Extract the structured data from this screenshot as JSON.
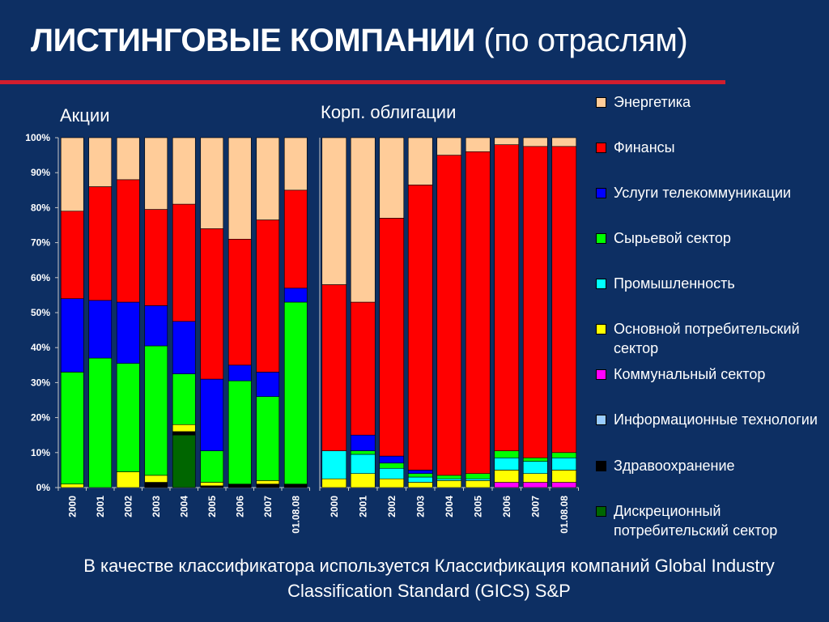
{
  "title": {
    "main": "ЛИСТИНГОВЫЕ КОМПАНИИ",
    "sub": "(по отраслям)"
  },
  "footnote": "В качестве классификатора используется Классификация компаний Global Industry Classification Standard (GICS) S&P",
  "colors": {
    "background": "#0d2f63",
    "rule": "#d21e2d",
    "axis": "#c8c8c8"
  },
  "legend": [
    {
      "key": "energy",
      "label": "Энергетика",
      "color": "#ffcc99"
    },
    {
      "key": "finance",
      "label": "Финансы",
      "color": "#ff0000"
    },
    {
      "key": "telecom",
      "label": "Услуги телекоммуникации",
      "color": "#0000ff"
    },
    {
      "key": "materials",
      "label": "Сырьевой сектор",
      "color": "#00ff00"
    },
    {
      "key": "industrials",
      "label": "Промышленность",
      "color": "#00ffff"
    },
    {
      "key": "staples",
      "label": "Основной потребительский сектор",
      "color": "#ffff00"
    },
    {
      "key": "utilities",
      "label": "Коммунальный сектор",
      "color": "#ff00ff"
    },
    {
      "key": "it",
      "label": "Информационные технологии",
      "color": "#99ccff"
    },
    {
      "key": "healthcare",
      "label": "Здравоохранение",
      "color": "#000000"
    },
    {
      "key": "discretionary",
      "label": "Дискреционный потребительский сектор",
      "color": "#006600"
    }
  ],
  "chart_data": [
    {
      "type": "bar",
      "stacked": true,
      "title": "Акции",
      "y_ticks": [
        "0%",
        "10%",
        "20%",
        "30%",
        "40%",
        "50%",
        "60%",
        "70%",
        "80%",
        "90%",
        "100%"
      ],
      "ylim": [
        0,
        100
      ],
      "categories": [
        "2000",
        "2001",
        "2002",
        "2003",
        "2004",
        "2005",
        "2006",
        "2007",
        "01.08.08"
      ],
      "series": [
        {
          "name": "Дискреционный потребительский сектор",
          "values": [
            0,
            0,
            0,
            0,
            15,
            0,
            0,
            0,
            0
          ]
        },
        {
          "name": "Здравоохранение",
          "values": [
            0,
            0,
            0,
            1.5,
            1,
            0.5,
            1,
            1,
            1
          ]
        },
        {
          "name": "Информационные технологии",
          "values": [
            0,
            0,
            0,
            0,
            0,
            0,
            0,
            0,
            0
          ]
        },
        {
          "name": "Коммунальный сектор",
          "values": [
            0,
            0,
            0,
            0,
            0,
            0,
            0,
            0,
            0
          ]
        },
        {
          "name": "Основной потребительский сектор",
          "values": [
            1,
            0,
            4.5,
            2,
            2,
            1,
            0,
            1,
            0
          ]
        },
        {
          "name": "Промышленность",
          "values": [
            0,
            0,
            0,
            0,
            0,
            0,
            0,
            0,
            0
          ]
        },
        {
          "name": "Сырьевой сектор",
          "values": [
            32,
            37,
            31,
            37,
            14.5,
            9,
            29.5,
            24,
            52
          ]
        },
        {
          "name": "Услуги телекоммуникации",
          "values": [
            21,
            16.5,
            17.5,
            11.5,
            15,
            20.5,
            4.5,
            7,
            4
          ]
        },
        {
          "name": "Финансы",
          "values": [
            25,
            32.5,
            35,
            27.5,
            33.5,
            43,
            36,
            43.5,
            28
          ]
        },
        {
          "name": "Энергетика",
          "values": [
            21,
            14,
            12,
            20.5,
            19,
            26,
            29,
            23.5,
            15
          ]
        }
      ]
    },
    {
      "type": "bar",
      "stacked": true,
      "title": "Корп. облигации",
      "ylim": [
        0,
        100
      ],
      "categories": [
        "2000",
        "2001",
        "2002",
        "2003",
        "2004",
        "2005",
        "2006",
        "2007",
        "01.08.08"
      ],
      "series": [
        {
          "name": "Дискреционный потребительский сектор",
          "values": [
            0,
            0,
            0,
            0,
            0,
            0,
            0,
            0,
            0
          ]
        },
        {
          "name": "Здравоохранение",
          "values": [
            0,
            0,
            0,
            0,
            0,
            0,
            0,
            0,
            0
          ]
        },
        {
          "name": "Информационные технологии",
          "values": [
            0,
            0,
            0,
            0,
            0,
            0,
            0,
            0,
            0
          ]
        },
        {
          "name": "Коммунальный сектор",
          "values": [
            0,
            0,
            0,
            0,
            0,
            0,
            1.5,
            1.5,
            1.5
          ]
        },
        {
          "name": "Основной потребительский сектор",
          "values": [
            2.5,
            4,
            2.5,
            1.5,
            2,
            2,
            3.5,
            2.5,
            3.5
          ]
        },
        {
          "name": "Промышленность",
          "values": [
            8,
            5.5,
            3,
            1.5,
            0.5,
            0.5,
            3.5,
            3.5,
            3.5
          ]
        },
        {
          "name": "Сырьевой сектор",
          "values": [
            0,
            1,
            1.5,
            1,
            1,
            1.5,
            2,
            1,
            1.5
          ]
        },
        {
          "name": "Услуги телекоммуникации",
          "values": [
            0,
            4.5,
            2,
            1,
            0,
            0,
            0,
            0,
            0
          ]
        },
        {
          "name": "Финансы",
          "values": [
            47.5,
            38,
            68,
            81.5,
            91.5,
            92,
            87.5,
            89,
            87.5
          ]
        },
        {
          "name": "Энергетика",
          "values": [
            42,
            47,
            23,
            13.5,
            5,
            4,
            2,
            2.5,
            2.5
          ]
        }
      ]
    }
  ]
}
